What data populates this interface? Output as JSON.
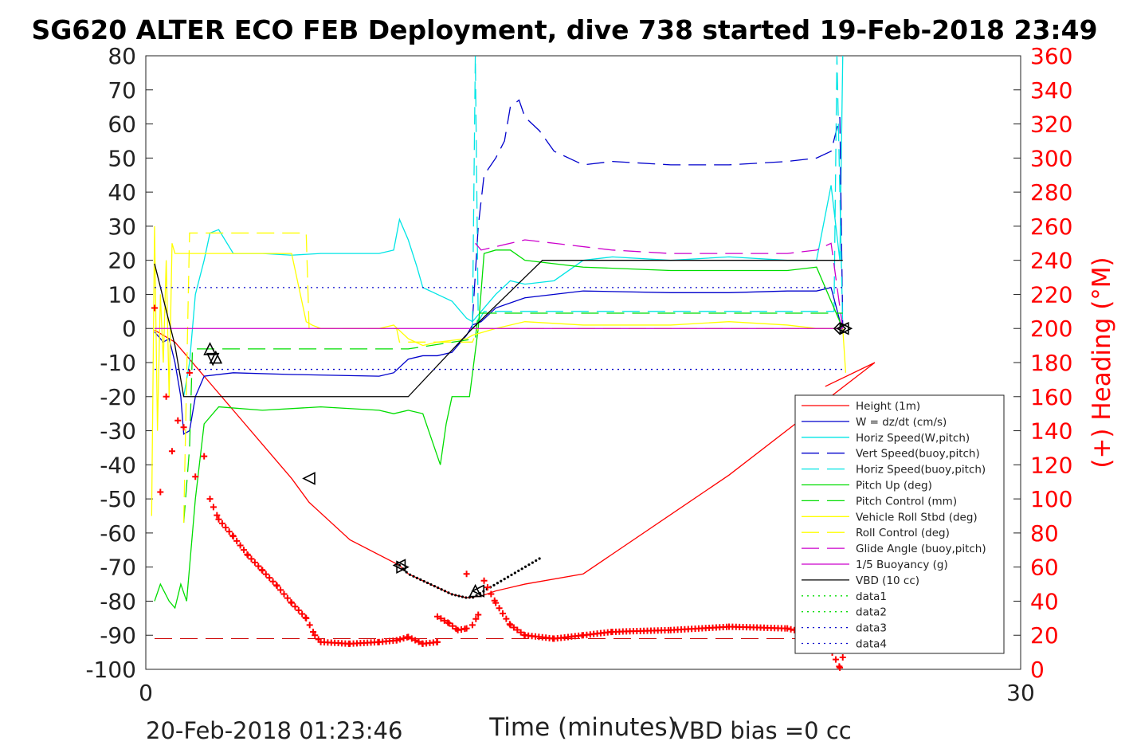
{
  "title": "SG620 ALTER ECO FEB Deployment, dive 738 started 19-Feb-2018 23:49",
  "footer": {
    "left_timestamp": "20-Feb-2018 01:23:46",
    "vbd_bias": "VBD bias =0 cc"
  },
  "chart_data": {
    "type": "line",
    "xlabel": "Time (minutes)",
    "ylabel_right": "(+) Heading (°M)",
    "xlim": [
      0,
      30
    ],
    "ylim_left": [
      -100,
      80
    ],
    "ylim_right": [
      0,
      360
    ],
    "x_ticks": [
      "0",
      "30"
    ],
    "y_ticks_left": [
      "80",
      "70",
      "60",
      "50",
      "40",
      "30",
      "20",
      "10",
      "0",
      "-10",
      "-20",
      "-30",
      "-40",
      "-50",
      "-60",
      "-70",
      "-80",
      "-90",
      "-100"
    ],
    "y_ticks_right": [
      "360",
      "340",
      "320",
      "300",
      "280",
      "260",
      "240",
      "220",
      "200",
      "180",
      "160",
      "140",
      "120",
      "100",
      "80",
      "60",
      "40",
      "20",
      "0"
    ],
    "legend_position": "bottom-right",
    "colors": {
      "height": "#ff0000",
      "w": "#0000cc",
      "horiz": "#00e5e5",
      "vert_buoy": "#0000cc",
      "horiz_buoy": "#00e5e5",
      "pitch": "#00dd00",
      "pitch_ctrl": "#00dd00",
      "roll": "#ffff00",
      "roll_ctrl": "#ffff00",
      "glide": "#cc00cc",
      "buoy": "#cc00cc",
      "vbd": "#000000",
      "heading": "#ff0000"
    },
    "series": [
      {
        "name": "Height (1m)",
        "style": "solid",
        "color": "#ff0000",
        "x": [
          0.3,
          1,
          1.3,
          2,
          3,
          4,
          5,
          5.6,
          7,
          8.7,
          9,
          10,
          10.5,
          11,
          11.5,
          12,
          13,
          15,
          20,
          25,
          23.3
        ],
        "y": [
          -0.5,
          -4,
          -7,
          -14,
          -24,
          -34,
          -44,
          -51,
          -62,
          -69.5,
          -72,
          -76,
          -78,
          -79,
          -78.5,
          -77,
          -75,
          -72,
          -43,
          -10,
          -17
        ]
      },
      {
        "name": "W = dz/dt (cm/s)",
        "style": "solid",
        "color": "#0000cc",
        "x": [
          0.3,
          0.6,
          0.8,
          1,
          1.2,
          1.3,
          1.5,
          1.7,
          2,
          3,
          5,
          8,
          8.5,
          9,
          9.5,
          10,
          10.5,
          11,
          11.2,
          11.5,
          12,
          13,
          15,
          18,
          20,
          22,
          23,
          23.5,
          23.9
        ],
        "y": [
          -1,
          -4,
          -3,
          -10,
          -20,
          -31,
          -30,
          -20,
          -14,
          -13,
          -13.5,
          -14,
          -13,
          -9,
          -8,
          -8,
          -7,
          -2,
          1,
          2,
          6,
          9,
          11,
          10.5,
          10.5,
          11,
          11,
          12,
          -1
        ]
      },
      {
        "name": "Horiz Speed(W,pitch)",
        "style": "solid",
        "color": "#00e5e5",
        "x": [
          1.3,
          1.5,
          1.7,
          2,
          2.2,
          2.5,
          3,
          4,
          5,
          6,
          7,
          8,
          8.5,
          8.7,
          9,
          9.3,
          9.5,
          10,
          10.5,
          11,
          11.2,
          11.6,
          12,
          12.5,
          13,
          14,
          15,
          16,
          18,
          20,
          22,
          23,
          23.5,
          23.8,
          23.9
        ],
        "y": [
          -20,
          -10,
          10,
          20,
          28,
          29,
          22,
          22,
          21.5,
          22,
          22,
          22,
          23,
          32,
          26,
          18,
          12,
          10,
          8,
          3,
          2,
          6,
          10,
          14,
          13,
          14,
          20,
          21,
          20,
          21,
          20,
          20,
          42,
          20,
          80
        ]
      },
      {
        "name": "Vert Speed(buoy,pitch)",
        "style": "dash",
        "color": "#0000cc",
        "x": [
          11.2,
          11.4,
          11.6,
          12,
          12.3,
          12.5,
          12.8,
          13,
          13.5,
          14,
          14.5,
          15,
          16,
          18,
          20,
          22,
          23,
          23.5,
          23.8,
          23.9
        ],
        "y": [
          2,
          30,
          45,
          50,
          55,
          65,
          67,
          62,
          58,
          52,
          50,
          48,
          49,
          48,
          48,
          49,
          50,
          52,
          62,
          0
        ]
      },
      {
        "name": "Horiz Speed(buoy,pitch)",
        "style": "dash",
        "color": "#00e5e5",
        "x": [
          11.2,
          11.3,
          11.4,
          11.6,
          12,
          23.6,
          23.7,
          23.9
        ],
        "y": [
          0,
          80,
          2,
          5,
          5,
          5,
          80,
          0
        ]
      },
      {
        "name": "Pitch Up (deg)",
        "style": "solid",
        "color": "#00dd00",
        "x": [
          0.3,
          0.5,
          0.8,
          1,
          1.2,
          1.4,
          1.5,
          1.7,
          2,
          2.5,
          4,
          6,
          8,
          8.5,
          9,
          9.5,
          10.1,
          10.3,
          10.5,
          11.1,
          11.4,
          11.6,
          12,
          12.5,
          13,
          15,
          18,
          20,
          22,
          23,
          23.9
        ],
        "y": [
          -80,
          -75,
          -80,
          -82,
          -75,
          -80,
          -70,
          -50,
          -28,
          -23,
          -24,
          -23,
          -24,
          -25,
          -24,
          -25,
          -40,
          -28,
          -20,
          -20,
          0,
          22,
          23,
          23,
          20,
          18,
          17,
          17,
          17,
          18,
          0
        ]
      },
      {
        "name": "Pitch Control (mm)",
        "style": "dash",
        "color": "#00dd00",
        "x": [
          1.3,
          1.5,
          1.6,
          9,
          11.3,
          11.4,
          23.9
        ],
        "y": [
          -57,
          -35,
          -6,
          -6,
          -3,
          4.5,
          4.5
        ]
      },
      {
        "name": "Vehicle Roll Stbd (deg)",
        "style": "solid",
        "color": "#ffff00",
        "x": [
          0.2,
          0.3,
          0.4,
          0.5,
          0.6,
          0.7,
          0.8,
          0.9,
          1,
          1.2,
          1.4,
          1.6,
          1.8,
          2,
          3,
          4,
          5,
          5.5,
          5.7,
          6,
          8,
          8.5,
          9,
          9.5,
          10,
          11,
          11.2,
          12,
          13,
          15,
          18,
          20,
          22,
          23,
          23.9,
          24
        ],
        "y": [
          -55,
          30,
          -30,
          10,
          -10,
          20,
          -20,
          25,
          22,
          22,
          22,
          22,
          22,
          22,
          22,
          22,
          22,
          2,
          1,
          0,
          0,
          1,
          -3,
          -5,
          -4,
          -3,
          -2,
          0,
          2,
          1,
          1,
          2,
          1,
          0,
          0,
          -13
        ]
      },
      {
        "name": "Roll Control (deg)",
        "style": "dash",
        "color": "#ffff00",
        "x": [
          1.3,
          1.5,
          5.5,
          5.6,
          8.6,
          8.7,
          11.2,
          11.4,
          23.9
        ],
        "y": [
          -57,
          28,
          28,
          0,
          0,
          -4,
          -4,
          0,
          0
        ]
      },
      {
        "name": "Glide Angle (buoy,pitch)",
        "style": "dash",
        "color": "#cc00cc",
        "x": [
          11.3,
          11.5,
          12,
          13,
          14,
          16,
          18,
          20,
          22,
          23,
          23.5,
          23.9
        ],
        "y": [
          25,
          23,
          24,
          26,
          25,
          23,
          22,
          22,
          22,
          23,
          25,
          0
        ]
      },
      {
        "name": "1/5 Buoyancy (g)",
        "style": "solid",
        "color": "#cc00cc",
        "x": [
          0.3,
          8.7,
          9,
          11.2,
          23.9
        ],
        "y": [
          0,
          0,
          0,
          0,
          0
        ]
      },
      {
        "name": "VBD (10 cc)",
        "style": "solid",
        "color": "#000000",
        "x": [
          0.3,
          1,
          1.3,
          9,
          11.2,
          13.6,
          23.9
        ],
        "y": [
          19,
          -5,
          -20,
          -20,
          0,
          20,
          20
        ]
      },
      {
        "name": "data1",
        "style": "dot",
        "color": "#00dd00",
        "x": [],
        "y": []
      },
      {
        "name": "data2",
        "style": "dot",
        "color": "#00dd00",
        "x": [],
        "y": []
      },
      {
        "name": "data3",
        "style": "dot",
        "color": "#0000cc",
        "x": [
          0.3,
          23.9
        ],
        "y": [
          12,
          12
        ]
      },
      {
        "name": "data4",
        "style": "dot",
        "color": "#0000cc",
        "x": [
          0.3,
          23.9
        ],
        "y": [
          -12,
          -12
        ]
      }
    ],
    "heading_points": {
      "name": "Heading",
      "axis": "right",
      "x": [
        0.3,
        0.5,
        0.7,
        0.9,
        1.1,
        1.3,
        1.5,
        1.7,
        2,
        2.2,
        2.5,
        3,
        3.5,
        4,
        4.5,
        5,
        5.5,
        5.8,
        6,
        7,
        8,
        8.6,
        9,
        9.5,
        10,
        10,
        10.4,
        10.7,
        11,
        11,
        11.2,
        11.4,
        11.6,
        12,
        12.5,
        13,
        14,
        15,
        16,
        18,
        20,
        22,
        23,
        23.3,
        23.8,
        23.9
      ],
      "y": [
        212,
        104,
        160,
        128,
        146,
        142,
        174,
        113,
        125,
        100,
        88,
        78,
        67,
        58,
        49,
        39,
        30,
        20,
        16,
        15,
        16,
        17,
        19,
        15,
        16,
        31,
        27,
        23,
        24,
        56,
        26,
        32,
        52,
        39,
        26,
        20,
        18,
        20,
        22,
        23,
        25,
        24,
        20,
        18,
        1,
        7
      ]
    },
    "reference_line": {
      "axis": "right",
      "value": 18,
      "style": "dash",
      "color": "#cc0000"
    },
    "markers": [
      {
        "shape": "triangle-up",
        "x": 2.2,
        "y": -6
      },
      {
        "shape": "triangle-up",
        "x": 2.4,
        "y": -8.5
      },
      {
        "shape": "triangle-down",
        "x": 2.3,
        "y": -9
      },
      {
        "shape": "triangle-left",
        "x": 5.6,
        "y": -44
      },
      {
        "shape": "triangle-left",
        "x": 8.7,
        "y": -69.5
      },
      {
        "shape": "triangle-right",
        "x": 8.8,
        "y": -70
      },
      {
        "shape": "triangle-up",
        "x": 11.3,
        "y": -77
      },
      {
        "shape": "triangle-left",
        "x": 11.4,
        "y": -77
      },
      {
        "shape": "diamond",
        "x": 23.8,
        "y": 0
      },
      {
        "shape": "triangle-left",
        "x": 23.9,
        "y": 0
      },
      {
        "shape": "triangle-right",
        "x": 24.0,
        "y": 0
      }
    ],
    "apogee_dots": {
      "x_start": 8.7,
      "x_end": 13.6
    }
  }
}
